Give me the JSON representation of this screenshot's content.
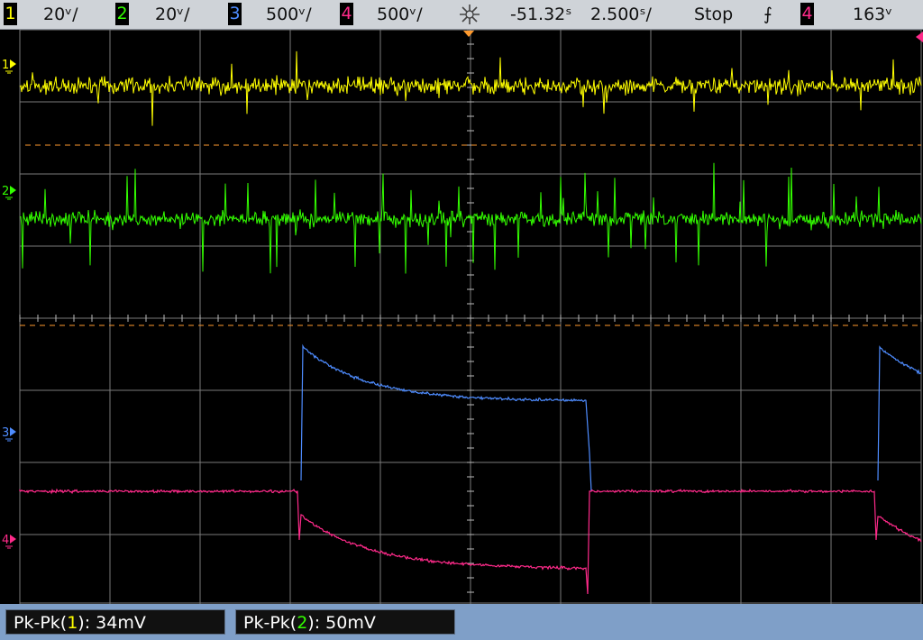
{
  "header": {
    "channels": [
      {
        "num": "1",
        "scale": "20ᵛ/",
        "color": "#ffff00"
      },
      {
        "num": "2",
        "scale": "20ᵛ/",
        "color": "#33ff00"
      },
      {
        "num": "3",
        "scale": "500ᵛ/",
        "color": "#4e8cff"
      },
      {
        "num": "4",
        "scale": "500ᵛ/",
        "color": "#ff2a8a"
      }
    ],
    "delay": "-51.32ˢ",
    "timebase": "2.500ˢ/",
    "run_state": "Stop",
    "trigger_slope": "⨍",
    "trigger_source": "4",
    "trigger_level": "163ᵛ"
  },
  "screen": {
    "grid_color": "#7a7a7a",
    "ground_markers": [
      {
        "label": "1",
        "color": "#ffff00"
      },
      {
        "label": "2",
        "color": "#33ff00"
      },
      {
        "label": "3",
        "color": "#4e8cff"
      },
      {
        "label": "4",
        "color": "#ff2a8a"
      }
    ],
    "trigger_marker_color": "#ff9a2e"
  },
  "measurements": [
    {
      "label_pre": "Pk-Pk(",
      "channel": "1",
      "label_post": "): 34mV",
      "channel_color": "#ffff00"
    },
    {
      "label_pre": "Pk-Pk(",
      "channel": "2",
      "label_post": "): 50mV",
      "channel_color": "#33ff00"
    }
  ]
}
